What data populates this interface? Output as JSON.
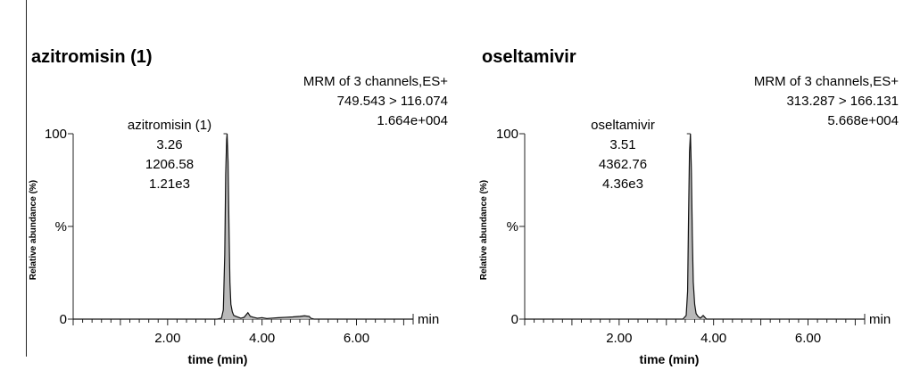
{
  "chart_data": [
    {
      "type": "line",
      "title": "azitromisin (1)",
      "info_lines": [
        "MRM of 3 channels,ES+",
        "749.543 > 116.074",
        "1.664e+004"
      ],
      "peak_label": [
        "azitromisin (1)",
        "3.26",
        "1206.58",
        "1.21e3"
      ],
      "peak_time": 3.26,
      "xlabel": "time (min)",
      "ylabel": "Relative abundance (%)",
      "x_unit": "min",
      "y_mid_label": "%",
      "xlim": [
        0.0,
        7.2
      ],
      "ylim": [
        0,
        100
      ],
      "x_ticks": [
        2.0,
        4.0,
        6.0
      ],
      "x_tick_labels": [
        "2.00",
        "4.00",
        "6.00"
      ],
      "y_ticks": [
        0,
        100
      ],
      "y_tick_labels": [
        "0",
        "100"
      ],
      "series": [
        {
          "x": [
            0.0,
            3.05,
            3.14,
            3.18,
            3.21,
            3.23,
            3.25,
            3.26,
            3.28,
            3.3,
            3.32,
            3.34,
            3.37,
            3.4,
            3.45,
            3.5,
            3.55,
            3.62,
            3.7,
            3.75,
            3.82,
            3.9,
            4.0,
            4.1,
            4.2,
            4.35,
            4.5,
            4.65,
            4.8,
            4.9,
            5.0,
            5.03,
            5.1,
            7.2
          ],
          "y": [
            0,
            0,
            0.5,
            5,
            35,
            78,
            97,
            100,
            85,
            50,
            20,
            8,
            4,
            2,
            1.5,
            1,
            0.5,
            1,
            3.5,
            1.5,
            1,
            0.5,
            0.8,
            0.3,
            0.5,
            0.8,
            1,
            1.2,
            1.5,
            1.8,
            1.5,
            0.5,
            0,
            0
          ]
        }
      ]
    },
    {
      "type": "line",
      "title": "oseltamivir",
      "info_lines": [
        "MRM of 3 channels,ES+",
        "313.287 > 166.131",
        "5.668e+004"
      ],
      "peak_label": [
        "oseltamivir",
        "3.51",
        "4362.76",
        "4.36e3"
      ],
      "peak_time": 3.51,
      "xlabel": "time (min)",
      "ylabel": "Relative abundance (%)",
      "x_unit": "min",
      "y_mid_label": "%",
      "xlim": [
        0.0,
        7.2
      ],
      "ylim": [
        0,
        100
      ],
      "x_ticks": [
        2.0,
        4.0,
        6.0
      ],
      "x_tick_labels": [
        "2.00",
        "4.00",
        "6.00"
      ],
      "y_ticks": [
        0,
        100
      ],
      "y_tick_labels": [
        "0",
        "100"
      ],
      "series": [
        {
          "x": [
            0.0,
            3.35,
            3.42,
            3.45,
            3.47,
            3.49,
            3.51,
            3.53,
            3.55,
            3.57,
            3.6,
            3.63,
            3.67,
            3.72,
            3.78,
            3.85,
            7.2
          ],
          "y": [
            0,
            0,
            2,
            15,
            55,
            90,
            100,
            80,
            45,
            20,
            8,
            3,
            1.5,
            0.5,
            2,
            0,
            0
          ]
        }
      ]
    }
  ]
}
